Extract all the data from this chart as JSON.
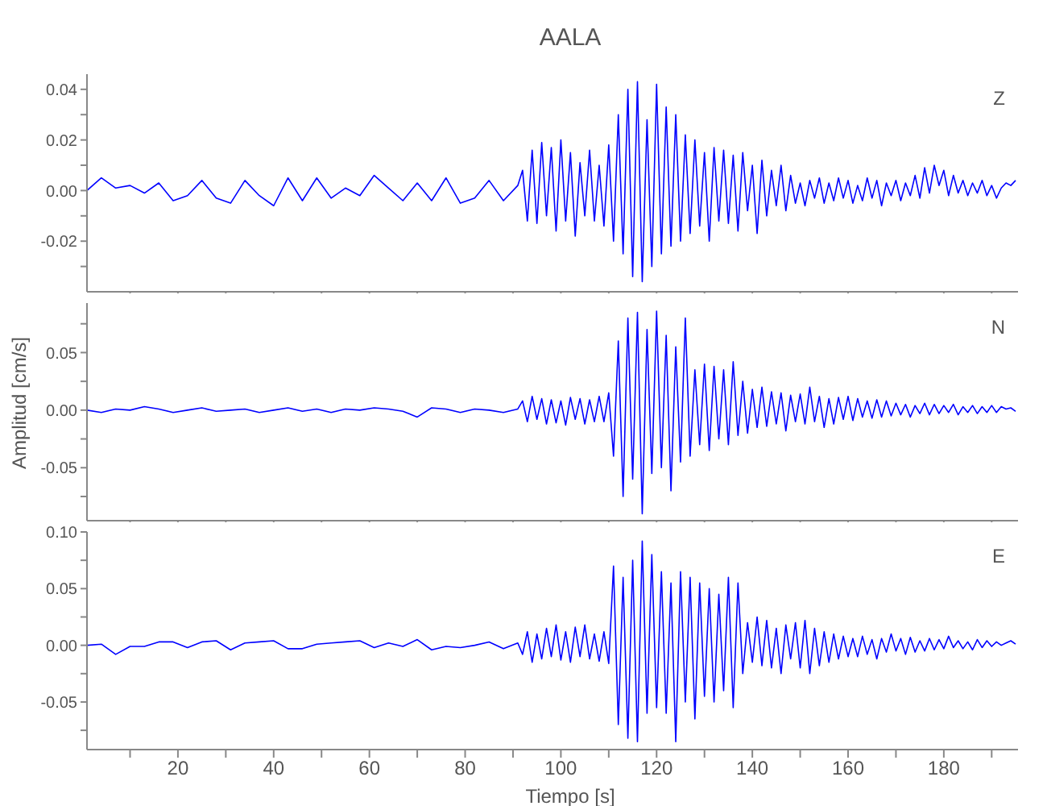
{
  "chart_data": [
    {
      "type": "line",
      "title": "AALA",
      "annotations": [
        "Z"
      ],
      "tick_labels": "y",
      "color": "#0000ff",
      "xlim": [
        1,
        195.5
      ],
      "xticks": [
        {
          "value": 10,
          "label": null
        },
        {
          "value": 20,
          "label": null
        },
        {
          "value": 30,
          "label": null
        },
        {
          "value": 40,
          "label": null
        },
        {
          "value": 50,
          "label": null
        },
        {
          "value": 60,
          "label": null
        },
        {
          "value": 70,
          "label": null
        },
        {
          "value": 80,
          "label": null
        },
        {
          "value": 90,
          "label": null
        },
        {
          "value": 100,
          "label": null
        },
        {
          "value": 110,
          "label": null
        },
        {
          "value": 120,
          "label": null
        },
        {
          "value": 130,
          "label": null
        },
        {
          "value": 140,
          "label": null
        },
        {
          "value": 150,
          "label": null
        },
        {
          "value": 160,
          "label": null
        },
        {
          "value": 170,
          "label": null
        },
        {
          "value": 180,
          "label": null
        },
        {
          "value": 190,
          "label": null
        }
      ],
      "ylim": [
        -0.04,
        0.046
      ],
      "yticks": [
        {
          "value": -0.03,
          "label": null
        },
        {
          "value": -0.02,
          "label": "-0.02"
        },
        {
          "value": -0.01,
          "label": null
        },
        {
          "value": 0,
          "label": "0.00"
        },
        {
          "value": 0.01,
          "label": null
        },
        {
          "value": 0.02,
          "label": "0.02"
        },
        {
          "value": 0.03,
          "label": null
        },
        {
          "value": 0.04,
          "label": "0.04"
        }
      ],
      "x": [
        1,
        4,
        7,
        10,
        13,
        16,
        19,
        22,
        25,
        28,
        31,
        34,
        37,
        40,
        43,
        46,
        49,
        52,
        55,
        58,
        61,
        64,
        67,
        70,
        73,
        76,
        79,
        82,
        85,
        88,
        91,
        92,
        93,
        94,
        95,
        96,
        97,
        98,
        99,
        100,
        101,
        102,
        103,
        104,
        105,
        106,
        107,
        108,
        109,
        110,
        111,
        112,
        113,
        114,
        115,
        116,
        117,
        118,
        119,
        120,
        121,
        122,
        123,
        124,
        125,
        126,
        127,
        128,
        129,
        130,
        131,
        132,
        133,
        134,
        135,
        136,
        137,
        138,
        139,
        140,
        141,
        142,
        143,
        144,
        145,
        146,
        147,
        148,
        149,
        150,
        151,
        152,
        153,
        154,
        155,
        156,
        157,
        158,
        159,
        160,
        161,
        162,
        163,
        164,
        165,
        166,
        167,
        168,
        169,
        170,
        171,
        172,
        173,
        174,
        175,
        176,
        177,
        178,
        179,
        180,
        181,
        182,
        183,
        184,
        185,
        186,
        187,
        188,
        189,
        190,
        191,
        192,
        193,
        194,
        195
      ],
      "values": [
        0.0,
        0.005,
        0.001,
        0.002,
        -0.001,
        0.003,
        -0.004,
        -0.002,
        0.004,
        -0.003,
        -0.005,
        0.004,
        -0.002,
        -0.006,
        0.005,
        -0.004,
        0.005,
        -0.003,
        0.001,
        -0.002,
        0.006,
        0.001,
        -0.004,
        0.003,
        -0.004,
        0.005,
        -0.005,
        -0.003,
        0.004,
        -0.004,
        0.002,
        0.008,
        -0.012,
        0.016,
        -0.013,
        0.019,
        -0.01,
        0.017,
        -0.016,
        0.02,
        -0.012,
        0.015,
        -0.018,
        0.011,
        -0.01,
        0.016,
        -0.012,
        0.01,
        -0.014,
        0.018,
        -0.02,
        0.03,
        -0.025,
        0.04,
        -0.034,
        0.043,
        -0.036,
        0.028,
        -0.03,
        0.042,
        -0.025,
        0.033,
        -0.022,
        0.03,
        -0.02,
        0.022,
        -0.017,
        0.02,
        -0.014,
        0.015,
        -0.02,
        0.017,
        -0.012,
        0.016,
        -0.013,
        0.014,
        -0.016,
        0.015,
        -0.008,
        0.01,
        -0.017,
        0.012,
        -0.01,
        0.008,
        -0.006,
        0.01,
        -0.008,
        0.006,
        -0.005,
        0.003,
        -0.006,
        0.004,
        -0.003,
        0.005,
        -0.005,
        0.003,
        -0.004,
        0.005,
        -0.003,
        0.004,
        -0.005,
        0.002,
        -0.004,
        0.005,
        -0.003,
        0.004,
        -0.006,
        0.003,
        -0.002,
        0.004,
        -0.004,
        0.003,
        -0.002,
        0.006,
        -0.003,
        0.009,
        -0.001,
        0.01,
        0.002,
        0.008,
        -0.002,
        0.006,
        -0.001,
        0.004,
        -0.002,
        0.003,
        -0.001,
        0.004,
        -0.002,
        0.002,
        -0.003,
        0.001,
        0.003,
        0.002,
        0.004
      ]
    },
    {
      "type": "line",
      "ylabel": "Amplitud [cm/s]",
      "annotations": [
        "N"
      ],
      "tick_labels": "y",
      "color": "#0000ff",
      "xlim": [
        1,
        195.5
      ],
      "xticks": [
        {
          "value": 10,
          "label": null
        },
        {
          "value": 20,
          "label": null
        },
        {
          "value": 30,
          "label": null
        },
        {
          "value": 40,
          "label": null
        },
        {
          "value": 50,
          "label": null
        },
        {
          "value": 60,
          "label": null
        },
        {
          "value": 70,
          "label": null
        },
        {
          "value": 80,
          "label": null
        },
        {
          "value": 90,
          "label": null
        },
        {
          "value": 100,
          "label": null
        },
        {
          "value": 110,
          "label": null
        },
        {
          "value": 120,
          "label": null
        },
        {
          "value": 130,
          "label": null
        },
        {
          "value": 140,
          "label": null
        },
        {
          "value": 150,
          "label": null
        },
        {
          "value": 160,
          "label": null
        },
        {
          "value": 170,
          "label": null
        },
        {
          "value": 180,
          "label": null
        },
        {
          "value": 190,
          "label": null
        }
      ],
      "ylim": [
        -0.096,
        0.093
      ],
      "yticks": [
        {
          "value": -0.075,
          "label": null
        },
        {
          "value": -0.05,
          "label": "-0.05"
        },
        {
          "value": -0.025,
          "label": null
        },
        {
          "value": 0,
          "label": "0.00"
        },
        {
          "value": 0.025,
          "label": null
        },
        {
          "value": 0.05,
          "label": "0.05"
        },
        {
          "value": 0.075,
          "label": null
        }
      ],
      "x": [
        1,
        4,
        7,
        10,
        13,
        16,
        19,
        22,
        25,
        28,
        31,
        34,
        37,
        40,
        43,
        46,
        49,
        52,
        55,
        58,
        61,
        64,
        67,
        70,
        73,
        76,
        79,
        82,
        85,
        88,
        91,
        92,
        93,
        94,
        95,
        96,
        97,
        98,
        99,
        100,
        101,
        102,
        103,
        104,
        105,
        106,
        107,
        108,
        109,
        110,
        111,
        112,
        113,
        114,
        115,
        116,
        117,
        118,
        119,
        120,
        121,
        122,
        123,
        124,
        125,
        126,
        127,
        128,
        129,
        130,
        131,
        132,
        133,
        134,
        135,
        136,
        137,
        138,
        139,
        140,
        141,
        142,
        143,
        144,
        145,
        146,
        147,
        148,
        149,
        150,
        151,
        152,
        153,
        154,
        155,
        156,
        157,
        158,
        159,
        160,
        161,
        162,
        163,
        164,
        165,
        166,
        167,
        168,
        169,
        170,
        171,
        172,
        173,
        174,
        175,
        176,
        177,
        178,
        179,
        180,
        181,
        182,
        183,
        184,
        185,
        186,
        187,
        188,
        189,
        190,
        191,
        192,
        193,
        194,
        195
      ],
      "values": [
        0.0,
        -0.002,
        0.001,
        0.0,
        0.003,
        0.001,
        -0.002,
        0.0,
        0.002,
        -0.001,
        0.0,
        0.001,
        -0.002,
        0.0,
        0.002,
        -0.001,
        0.001,
        -0.002,
        0.001,
        0.0,
        0.002,
        0.001,
        -0.001,
        -0.006,
        0.002,
        0.001,
        -0.002,
        0.001,
        0.0,
        -0.002,
        0.001,
        0.008,
        -0.01,
        0.012,
        -0.008,
        0.01,
        -0.012,
        0.009,
        -0.011,
        0.008,
        -0.013,
        0.011,
        -0.008,
        0.01,
        -0.012,
        0.009,
        -0.01,
        0.012,
        -0.01,
        0.015,
        -0.04,
        0.06,
        -0.075,
        0.08,
        -0.06,
        0.085,
        -0.09,
        0.07,
        -0.055,
        0.086,
        -0.05,
        0.065,
        -0.07,
        0.055,
        -0.045,
        0.08,
        -0.04,
        0.035,
        -0.03,
        0.04,
        -0.035,
        0.038,
        -0.025,
        0.035,
        -0.03,
        0.042,
        -0.022,
        0.025,
        -0.02,
        0.018,
        -0.015,
        0.02,
        -0.014,
        0.016,
        -0.012,
        0.015,
        -0.018,
        0.013,
        -0.01,
        0.014,
        -0.012,
        0.02,
        -0.01,
        0.012,
        -0.015,
        0.01,
        -0.012,
        0.011,
        -0.008,
        0.012,
        -0.009,
        0.01,
        -0.006,
        0.008,
        -0.007,
        0.009,
        -0.006,
        0.008,
        -0.005,
        0.006,
        -0.004,
        0.005,
        -0.006,
        0.004,
        -0.003,
        0.006,
        -0.004,
        0.005,
        -0.003,
        0.004,
        -0.002,
        0.005,
        -0.004,
        0.003,
        -0.002,
        0.004,
        -0.003,
        0.003,
        -0.002,
        0.004,
        -0.002,
        0.003,
        0.001,
        0.002,
        -0.001
      ]
    },
    {
      "type": "line",
      "xlabel": "Tiempo [s]",
      "annotations": [
        "E"
      ],
      "color": "#0000ff",
      "xlim": [
        1,
        195.5
      ],
      "xticks": [
        {
          "value": 10,
          "label": null
        },
        {
          "value": 20,
          "label": "20"
        },
        {
          "value": 30,
          "label": null
        },
        {
          "value": 40,
          "label": "40"
        },
        {
          "value": 50,
          "label": null
        },
        {
          "value": 60,
          "label": "60"
        },
        {
          "value": 70,
          "label": null
        },
        {
          "value": 80,
          "label": "80"
        },
        {
          "value": 90,
          "label": null
        },
        {
          "value": 100,
          "label": "100"
        },
        {
          "value": 110,
          "label": null
        },
        {
          "value": 120,
          "label": "120"
        },
        {
          "value": 130,
          "label": null
        },
        {
          "value": 140,
          "label": "140"
        },
        {
          "value": 150,
          "label": null
        },
        {
          "value": 160,
          "label": "160"
        },
        {
          "value": 170,
          "label": null
        },
        {
          "value": 180,
          "label": "180"
        },
        {
          "value": 190,
          "label": null
        }
      ],
      "ylim": [
        -0.092,
        0.1
      ],
      "yticks": [
        {
          "value": -0.075,
          "label": null
        },
        {
          "value": -0.05,
          "label": "-0.05"
        },
        {
          "value": -0.025,
          "label": null
        },
        {
          "value": 0,
          "label": "0.00"
        },
        {
          "value": 0.025,
          "label": null
        },
        {
          "value": 0.05,
          "label": "0.05"
        },
        {
          "value": 0.075,
          "label": null
        },
        {
          "value": 0.1,
          "label": "0.10"
        }
      ],
      "x": [
        1,
        4,
        7,
        10,
        13,
        16,
        19,
        22,
        25,
        28,
        31,
        34,
        37,
        40,
        43,
        46,
        49,
        52,
        55,
        58,
        61,
        64,
        67,
        70,
        73,
        76,
        79,
        82,
        85,
        88,
        91,
        92,
        93,
        94,
        95,
        96,
        97,
        98,
        99,
        100,
        101,
        102,
        103,
        104,
        105,
        106,
        107,
        108,
        109,
        110,
        111,
        112,
        113,
        114,
        115,
        116,
        117,
        118,
        119,
        120,
        121,
        122,
        123,
        124,
        125,
        126,
        127,
        128,
        129,
        130,
        131,
        132,
        133,
        134,
        135,
        136,
        137,
        138,
        139,
        140,
        141,
        142,
        143,
        144,
        145,
        146,
        147,
        148,
        149,
        150,
        151,
        152,
        153,
        154,
        155,
        156,
        157,
        158,
        159,
        160,
        161,
        162,
        163,
        164,
        165,
        166,
        167,
        168,
        169,
        170,
        171,
        172,
        173,
        174,
        175,
        176,
        177,
        178,
        179,
        180,
        181,
        182,
        183,
        184,
        185,
        186,
        187,
        188,
        189,
        190,
        191,
        192,
        193,
        194,
        195
      ],
      "values": [
        0.0,
        0.001,
        -0.008,
        -0.001,
        -0.001,
        0.003,
        0.003,
        -0.002,
        0.003,
        0.004,
        -0.004,
        0.002,
        0.003,
        0.004,
        -0.003,
        -0.003,
        0.001,
        0.002,
        0.003,
        0.004,
        -0.002,
        0.002,
        -0.001,
        0.005,
        -0.004,
        -0.001,
        -0.002,
        0.0,
        0.003,
        -0.003,
        0.002,
        -0.008,
        0.012,
        -0.015,
        0.01,
        -0.012,
        0.015,
        -0.01,
        0.018,
        -0.013,
        0.012,
        -0.015,
        0.016,
        -0.01,
        0.018,
        -0.012,
        0.01,
        -0.014,
        0.012,
        -0.016,
        0.07,
        -0.07,
        0.06,
        -0.082,
        0.075,
        -0.085,
        0.092,
        -0.06,
        0.08,
        -0.055,
        0.065,
        -0.06,
        0.055,
        -0.085,
        0.065,
        -0.05,
        0.06,
        -0.065,
        0.055,
        -0.045,
        0.05,
        -0.05,
        0.045,
        -0.04,
        0.06,
        -0.055,
        0.055,
        -0.025,
        0.02,
        -0.015,
        0.025,
        -0.018,
        0.022,
        -0.02,
        0.015,
        -0.025,
        0.018,
        -0.012,
        0.02,
        -0.02,
        0.022,
        -0.025,
        0.015,
        -0.018,
        0.012,
        -0.015,
        0.01,
        -0.012,
        0.008,
        -0.01,
        0.006,
        -0.01,
        0.008,
        -0.008,
        0.005,
        -0.012,
        0.006,
        -0.006,
        0.01,
        -0.005,
        0.006,
        -0.008,
        0.007,
        -0.006,
        0.004,
        -0.005,
        0.006,
        -0.004,
        0.005,
        -0.003,
        0.008,
        -0.002,
        0.004,
        -0.003,
        0.003,
        -0.004,
        0.005,
        -0.002,
        0.004,
        -0.001,
        0.003,
        0.0,
        0.002,
        0.004,
        0.001
      ]
    }
  ]
}
